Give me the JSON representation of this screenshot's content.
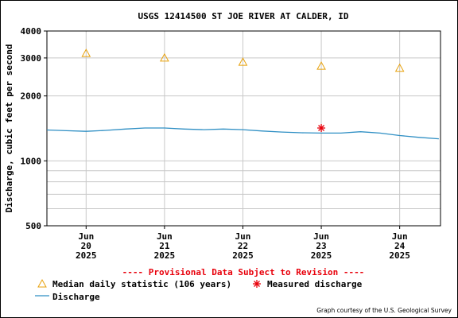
{
  "chart_data": {
    "type": "line",
    "title": "USGS 12414500 ST JOE RIVER AT CALDER, ID",
    "ylabel": "Discharge, cubic feet per second",
    "xlabel": "",
    "y_scale": "log",
    "ylim": [
      500,
      4000
    ],
    "y_ticks": [
      "500",
      "1000",
      "2000",
      "3000",
      "4000"
    ],
    "x_ticks": [
      {
        "x": "2025-06-20",
        "label": [
          "Jun",
          "20",
          "2025"
        ]
      },
      {
        "x": "2025-06-21",
        "label": [
          "Jun",
          "21",
          "2025"
        ]
      },
      {
        "x": "2025-06-22",
        "label": [
          "Jun",
          "22",
          "2025"
        ]
      },
      {
        "x": "2025-06-23",
        "label": [
          "Jun",
          "23",
          "2025"
        ]
      },
      {
        "x": "2025-06-24",
        "label": [
          "Jun",
          "24",
          "2025"
        ]
      }
    ],
    "xlim": [
      "2025-06-19 12:00",
      "2025-06-24 12:30"
    ],
    "grid": true,
    "series": [
      {
        "name": "Discharge",
        "kind": "line",
        "color": "#2f8fc4",
        "points": [
          [
            "2025-06-19 12:00",
            1390
          ],
          [
            "2025-06-19 18:00",
            1380
          ],
          [
            "2025-06-20 00:00",
            1370
          ],
          [
            "2025-06-20 06:00",
            1385
          ],
          [
            "2025-06-20 12:00",
            1405
          ],
          [
            "2025-06-20 18:00",
            1420
          ],
          [
            "2025-06-21 00:00",
            1420
          ],
          [
            "2025-06-21 06:00",
            1405
          ],
          [
            "2025-06-21 12:00",
            1395
          ],
          [
            "2025-06-21 18:00",
            1405
          ],
          [
            "2025-06-22 00:00",
            1395
          ],
          [
            "2025-06-22 06:00",
            1375
          ],
          [
            "2025-06-22 12:00",
            1360
          ],
          [
            "2025-06-22 18:00",
            1350
          ],
          [
            "2025-06-23 00:00",
            1345
          ],
          [
            "2025-06-23 06:00",
            1345
          ],
          [
            "2025-06-23 12:00",
            1365
          ],
          [
            "2025-06-23 18:00",
            1345
          ],
          [
            "2025-06-24 00:00",
            1310
          ],
          [
            "2025-06-24 06:00",
            1285
          ],
          [
            "2025-06-24 12:00",
            1265
          ]
        ]
      },
      {
        "name": "Median daily statistic (106 years)",
        "kind": "marker-triangle",
        "color": "#e8a10b",
        "points": [
          [
            "2025-06-20 00:00",
            3150
          ],
          [
            "2025-06-21 00:00",
            3000
          ],
          [
            "2025-06-22 00:00",
            2870
          ],
          [
            "2025-06-23 00:00",
            2750
          ],
          [
            "2025-06-24 00:00",
            2690
          ]
        ]
      },
      {
        "name": "Measured discharge",
        "kind": "marker-asterisk",
        "color": "#e8000b",
        "points": [
          [
            "2025-06-23 00:00",
            1420
          ]
        ]
      }
    ]
  },
  "annotations": {
    "provisional": "---- Provisional Data Subject to Revision ----",
    "credit": "Graph courtesy of the U.S. Geological Survey"
  }
}
